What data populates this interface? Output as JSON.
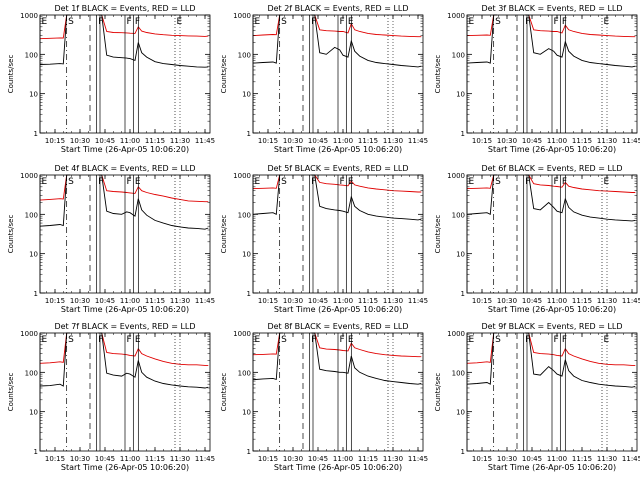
{
  "figure": {
    "panel_titles": [
      "Det 1f BLACK = Events, RED = LLD",
      "Det 2f BLACK = Events, RED = LLD",
      "Det 3f BLACK = Events, RED = LLD",
      "Det 4f BLACK = Events, RED = LLD",
      "Det 5f BLACK = Events, RED = LLD",
      "Det 6f BLACK = Events, RED = LLD",
      "Det 7f BLACK = Events, RED = LLD",
      "Det 8f BLACK = Events, RED = LLD",
      "Det 9f BLACK = Events, RED = LLD"
    ],
    "ylabel": "Counts/sec",
    "xlabel": "Start Time (26-Apr-05 10:06:20)"
  },
  "colors": {
    "events": "#000000",
    "lld": "#e00000",
    "axes": "#000000"
  },
  "chart_data": {
    "type": "line",
    "layout": "3x3 small multiples",
    "x_unit": "time of day",
    "y_scale": "log",
    "ylim": [
      1,
      1000
    ],
    "yticks": [
      1,
      10,
      100,
      1000
    ],
    "ytick_labels": [
      "1",
      "10",
      "100",
      "1000"
    ],
    "xlim": [
      "10:06",
      "11:48"
    ],
    "xticks": [
      "10:15",
      "10:30",
      "10:45",
      "11:00",
      "11:15",
      "11:30",
      "11:45"
    ],
    "xtick_labels": [
      "10:15",
      "10:30",
      "10:45",
      "11:00",
      "11:15",
      "11:30",
      "11:45"
    ],
    "dotted_grid_at": [
      "11:30"
    ],
    "x": [
      "10:06",
      "10:12",
      "10:18",
      "10:20",
      "10:22",
      "10:24",
      "10:30",
      "10:38",
      "10:41",
      "10:43",
      "10:46",
      "10:50",
      "10:55",
      "10:58",
      "11:00",
      "11:03",
      "11:05",
      "11:07",
      "11:10",
      "11:15",
      "11:20",
      "11:25",
      "11:30",
      "11:35",
      "11:40",
      "11:45",
      "11:47"
    ],
    "panels": [
      {
        "marker_letters": [
          "E",
          "S",
          "F",
          "F",
          "F",
          "E"
        ],
        "series": [
          {
            "values": [
              250,
              255,
              262,
              260,
              1000,
              1000,
              null,
              null,
              1000,
              1000,
              380,
              360,
              355,
              350,
              345,
              340,
              500,
              390,
              360,
              330,
              315,
              305,
              300,
              295,
              290,
              285,
              290
            ]
          },
          {
            "values": [
              55,
              56,
              58,
              57,
              1000,
              1000,
              null,
              null,
              1000,
              1000,
              95,
              85,
              82,
              80,
              78,
              70,
              200,
              110,
              85,
              65,
              58,
              55,
              52,
              50,
              48,
              47,
              48
            ]
          }
        ]
      },
      {
        "marker_letters": [
          "E",
          "S",
          "F",
          "F",
          "E"
        ],
        "series": [
          {
            "values": [
              300,
              310,
              320,
              315,
              1000,
              1000,
              null,
              null,
              1000,
              1000,
              420,
              400,
              390,
              380,
              380,
              350,
              600,
              420,
              380,
              340,
              320,
              310,
              300,
              290,
              285,
              280,
              280
            ]
          },
          {
            "values": [
              60,
              62,
              64,
              60,
              1000,
              1000,
              null,
              null,
              1000,
              1000,
              110,
              100,
              150,
              130,
              95,
              85,
              220,
              120,
              90,
              70,
              62,
              58,
              55,
              52,
              50,
              48,
              50
            ]
          }
        ]
      },
      {
        "marker_letters": [
          "E",
          "S",
          "F",
          "F",
          "F",
          "E"
        ],
        "series": [
          {
            "values": [
              300,
              305,
              310,
              305,
              1000,
              1000,
              null,
              null,
              1000,
              1000,
              420,
              400,
              390,
              380,
              380,
              350,
              550,
              420,
              380,
              340,
              320,
              310,
              300,
              290,
              285,
              280,
              280
            ]
          },
          {
            "values": [
              60,
              62,
              64,
              60,
              1000,
              1000,
              null,
              null,
              1000,
              1000,
              110,
              100,
              140,
              120,
              95,
              85,
              210,
              120,
              90,
              70,
              62,
              58,
              55,
              52,
              50,
              48,
              50
            ]
          }
        ]
      },
      {
        "marker_letters": [
          "E",
          "S",
          "F",
          "F",
          "E"
        ],
        "series": [
          {
            "values": [
              230,
              240,
              250,
              245,
              1000,
              1000,
              null,
              null,
              1000,
              1000,
              400,
              380,
              370,
              360,
              350,
              340,
              500,
              400,
              360,
              320,
              290,
              260,
              240,
              220,
              215,
              210,
              210
            ]
          },
          {
            "values": [
              50,
              52,
              55,
              52,
              1000,
              1000,
              null,
              null,
              1000,
              1000,
              120,
              105,
              100,
              115,
              110,
              90,
              250,
              130,
              95,
              70,
              60,
              52,
              48,
              45,
              44,
              42,
              45
            ]
          }
        ]
      },
      {
        "marker_letters": [
          "E",
          "S",
          "F",
          "F",
          "E"
        ],
        "series": [
          {
            "values": [
              450,
              460,
              470,
              460,
              1000,
              1000,
              null,
              null,
              1000,
              1000,
              650,
              600,
              580,
              560,
              550,
              530,
              700,
              560,
              520,
              470,
              440,
              420,
              400,
              390,
              380,
              370,
              370
            ]
          },
          {
            "values": [
              100,
              105,
              110,
              100,
              1000,
              1000,
              null,
              null,
              1000,
              1000,
              160,
              140,
              130,
              125,
              120,
              110,
              280,
              160,
              125,
              100,
              90,
              85,
              80,
              78,
              75,
              72,
              75
            ]
          }
        ]
      },
      {
        "marker_letters": [
          "E",
          "S",
          "F",
          "F",
          "F",
          "E"
        ],
        "series": [
          {
            "values": [
              450,
              460,
              470,
              460,
              1000,
              1000,
              null,
              null,
              1000,
              1000,
              600,
              560,
              540,
              520,
              510,
              490,
              650,
              520,
              480,
              440,
              420,
              400,
              390,
              380,
              370,
              360,
              360
            ]
          },
          {
            "values": [
              100,
              105,
              110,
              100,
              1000,
              1000,
              null,
              null,
              1000,
              1000,
              140,
              130,
              200,
              150,
              120,
              110,
              250,
              150,
              115,
              95,
              85,
              80,
              75,
              72,
              70,
              68,
              70
            ]
          }
        ]
      },
      {
        "marker_letters": [
          "E",
          "S",
          "F",
          "F",
          "E"
        ],
        "series": [
          {
            "values": [
              170,
              175,
              185,
              180,
              1000,
              1000,
              null,
              null,
              1000,
              1000,
              320,
              300,
              290,
              280,
              270,
              260,
              400,
              300,
              260,
              220,
              190,
              170,
              160,
              155,
              155,
              150,
              150
            ]
          },
          {
            "values": [
              45,
              46,
              50,
              45,
              1000,
              1000,
              null,
              null,
              1000,
              1000,
              95,
              85,
              80,
              95,
              90,
              75,
              200,
              100,
              75,
              60,
              52,
              48,
              45,
              43,
              42,
              40,
              42
            ]
          }
        ]
      },
      {
        "marker_letters": [
          "E",
          "S",
          "F",
          "F",
          "E"
        ],
        "series": [
          {
            "values": [
              280,
              285,
              295,
              290,
              1000,
              1000,
              null,
              null,
              1000,
              1000,
              420,
              390,
              380,
              370,
              360,
              350,
              550,
              420,
              380,
              330,
              300,
              280,
              270,
              260,
              255,
              250,
              250
            ]
          },
          {
            "values": [
              65,
              68,
              70,
              66,
              1000,
              1000,
              null,
              null,
              1000,
              1000,
              120,
              110,
              105,
              100,
              100,
              95,
              260,
              130,
              100,
              80,
              70,
              62,
              58,
              55,
              52,
              50,
              52
            ]
          }
        ]
      },
      {
        "marker_letters": [
          "E",
          "S",
          "F",
          "F",
          "F",
          "E"
        ],
        "series": [
          {
            "values": [
              170,
              175,
              185,
              180,
              1000,
              1000,
              null,
              null,
              1000,
              1000,
              320,
              300,
              290,
              280,
              270,
              260,
              400,
              300,
              260,
              220,
              190,
              170,
              160,
              155,
              155,
              150,
              150
            ]
          },
          {
            "values": [
              50,
              52,
              55,
              50,
              1000,
              1000,
              null,
              null,
              1000,
              1000,
              90,
              85,
              140,
              110,
              90,
              80,
              210,
              110,
              80,
              62,
              55,
              50,
              47,
              45,
              44,
              42,
              44
            ]
          }
        ]
      }
    ],
    "markers": [
      {
        "letter": "E",
        "time": "10:06",
        "style": "solid"
      },
      {
        "letter": "S",
        "time": "10:22",
        "style": "dash-dot"
      },
      {
        "letter": "",
        "time": "10:36",
        "style": "dashed"
      },
      {
        "letter": "F",
        "time": "10:40",
        "style": "solid"
      },
      {
        "letter": "",
        "time": "10:42",
        "style": "solid"
      },
      {
        "letter": "F",
        "time": "10:57",
        "style": "solid"
      },
      {
        "letter": "F",
        "time": "11:02",
        "style": "solid"
      },
      {
        "letter": "",
        "time": "11:05",
        "style": "solid"
      },
      {
        "letter": "E",
        "time": "11:27",
        "style": "dotted"
      }
    ]
  }
}
